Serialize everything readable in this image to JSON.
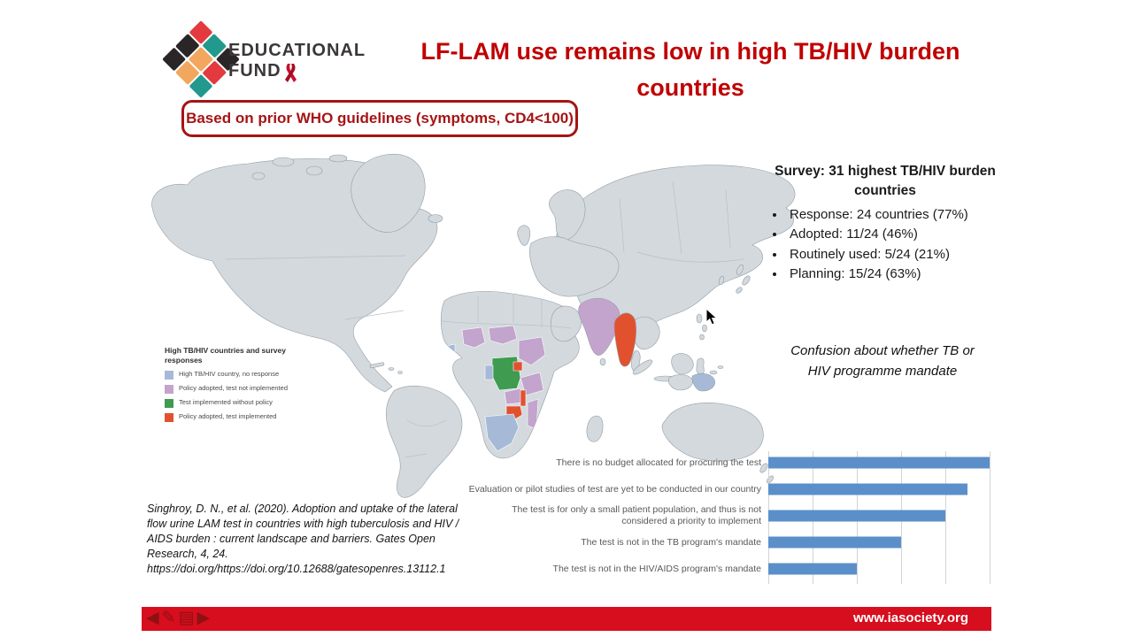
{
  "logo": {
    "line1": "EDUCATIONAL",
    "line2": "FUND",
    "ribbon_icon": "aids-ribbon",
    "colors": {
      "red": "#e23a3e",
      "teal": "#22998c",
      "black": "#2a2526",
      "orange": "#f2a express"
    }
  },
  "header": {
    "title": "LF-LAM use remains low in high TB/HIV burden countries",
    "title_color": "#c00000"
  },
  "callout": {
    "text": "Based on prior WHO guidelines (symptoms, CD4<100)"
  },
  "survey": {
    "heading": "Survey: 31 highest TB/HIV burden countries",
    "bullets": [
      "Response: 24 countries (77%)",
      "Adopted: 11/24 (46%)",
      "Routinely used: 5/24 (21%)",
      "Planning: 15/24 (63%)"
    ],
    "note": "Confusion about whether TB or HIV programme mandate"
  },
  "map": {
    "legend": {
      "title": "High TB/HIV countries and survey responses",
      "items": [
        {
          "label": "High TB/HIV country, no response",
          "color": "#a6bad8"
        },
        {
          "label": "Policy adopted, test not implemented",
          "color": "#c3a4cd"
        },
        {
          "label": "Test implemented without policy",
          "color": "#3f9b4f"
        },
        {
          "label": "Policy adopted, test implemented",
          "color": "#e2512e"
        }
      ]
    }
  },
  "citation": {
    "text": "Singhroy, D. N., et al. (2020). Adoption and uptake of the lateral flow urine LAM test in countries with high tuberculosis and HIV / AIDS burden : current landscape and barriers. Gates Open Research, 4, 24. https://doi.org/https://doi.org/10.12688/gatesopenres.13112.1"
  },
  "chart_data": {
    "type": "bar",
    "orientation": "horizontal",
    "categories": [
      "There is no budget allocated for procuring the test",
      "Evaluation or pilot studies of test are yet to be conducted in our country",
      "The test is for only a small patient population, and thus is not considered a priority to implement",
      "The test is not in the TB program's mandate",
      "The test is not in the HIV/AIDS program's mandate"
    ],
    "values": [
      10,
      9,
      8,
      6,
      4
    ],
    "xlim": [
      0,
      10
    ],
    "gridline_step": 2,
    "bar_color": "#5b8fc9",
    "grid": true,
    "axis_tick_labels_visible": false,
    "note": "x-axis tick labels cropped out of frame; values estimated from gridlines"
  },
  "footer": {
    "url": "www.iasociety.org",
    "bg": "#d60e1e",
    "icons": [
      {
        "name": "previous-arrow",
        "glyph": "◀"
      },
      {
        "name": "pencil",
        "glyph": "✎"
      },
      {
        "name": "notes",
        "glyph": "▤"
      },
      {
        "name": "next-arrow",
        "glyph": "▶"
      }
    ]
  }
}
